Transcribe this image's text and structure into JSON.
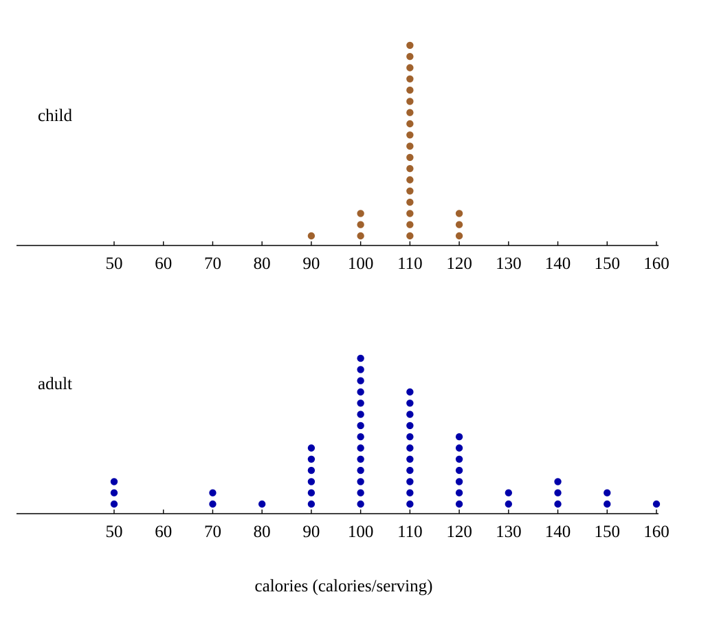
{
  "chart_data": {
    "type": "dot",
    "xlabel": "calories (calories/serving)",
    "ticks": [
      50,
      60,
      70,
      80,
      90,
      100,
      110,
      120,
      130,
      140,
      150,
      160
    ],
    "xlim": [
      30,
      160
    ],
    "series": [
      {
        "name": "child",
        "color": "#a0622d",
        "points": [
          {
            "x": 90,
            "count": 1
          },
          {
            "x": 100,
            "count": 3
          },
          {
            "x": 110,
            "count": 18
          },
          {
            "x": 120,
            "count": 3
          }
        ]
      },
      {
        "name": "adult",
        "color": "#0000aa",
        "points": [
          {
            "x": 50,
            "count": 3
          },
          {
            "x": 70,
            "count": 2
          },
          {
            "x": 80,
            "count": 1
          },
          {
            "x": 90,
            "count": 6
          },
          {
            "x": 100,
            "count": 14
          },
          {
            "x": 110,
            "count": 11
          },
          {
            "x": 120,
            "count": 7
          },
          {
            "x": 130,
            "count": 2
          },
          {
            "x": 140,
            "count": 3
          },
          {
            "x": 150,
            "count": 2
          },
          {
            "x": 160,
            "count": 1
          }
        ]
      }
    ]
  }
}
